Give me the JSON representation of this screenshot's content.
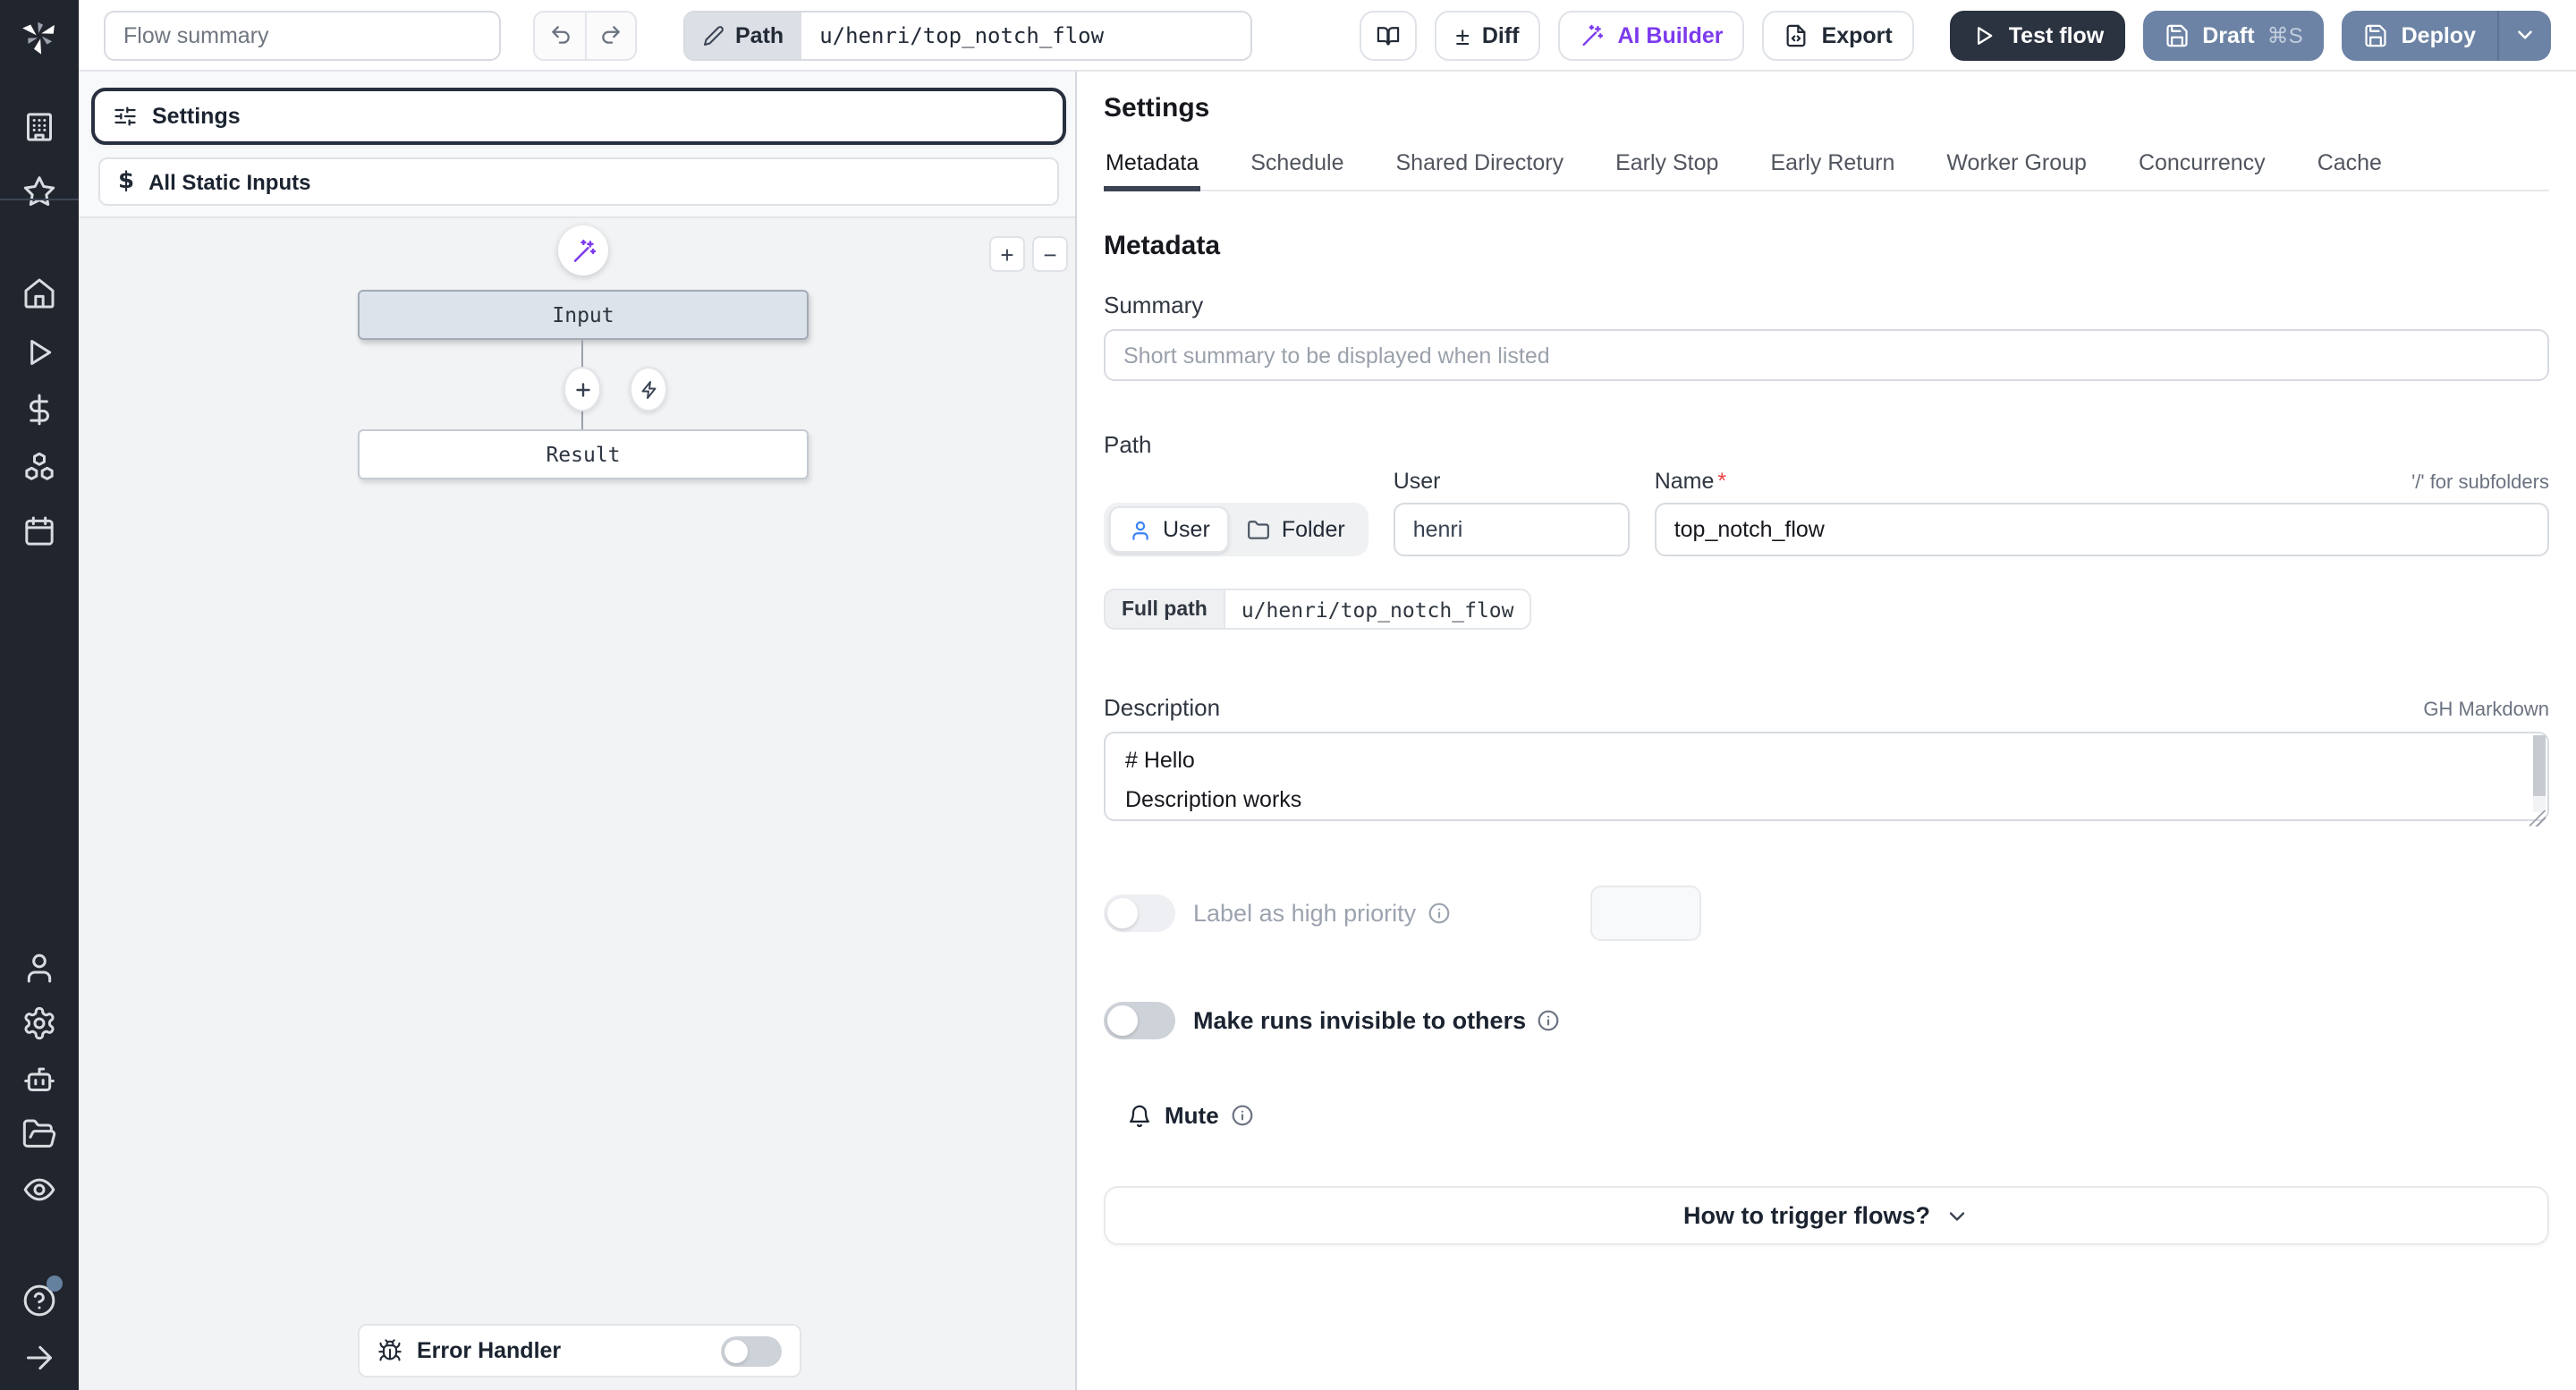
{
  "topbar": {
    "flow_summary_placeholder": "Flow summary",
    "path_badge_label": "Path",
    "path_value": "u/henri/top_notch_flow",
    "diff_glyph": "±",
    "diff_label": "Diff",
    "ai_builder_label": "AI Builder",
    "export_label": "Export",
    "test_flow_label": "Test flow",
    "draft_label": "Draft",
    "draft_shortcut": "⌘S",
    "deploy_label": "Deploy"
  },
  "sidebar": {
    "icons": [
      "workspace-building",
      "favorites-star",
      "home",
      "runs-play",
      "variables-dollar",
      "resources-boxes",
      "schedules-calendar",
      "users-person",
      "settings-gear",
      "workers-robot",
      "folders-folder",
      "audit-logs-eye",
      "help-question",
      "expand-arrow"
    ]
  },
  "flow_panel": {
    "settings_card_label": "Settings",
    "static_inputs_glyph": "$",
    "static_inputs_label": "All Static Inputs",
    "input_node_label": "Input",
    "result_node_label": "Result",
    "zoom_in_glyph": "+",
    "zoom_out_glyph": "−",
    "error_handler_label": "Error Handler"
  },
  "settings_panel": {
    "title": "Settings",
    "active_tab": "Metadata",
    "tabs": [
      "Metadata",
      "Schedule",
      "Shared Directory",
      "Early Stop",
      "Early Return",
      "Worker Group",
      "Concurrency",
      "Cache"
    ],
    "metadata": {
      "heading": "Metadata",
      "summary_label": "Summary",
      "summary_placeholder": "Short summary to be displayed when listed",
      "path_label": "Path",
      "user_toggle_label": "User",
      "folder_toggle_label": "Folder",
      "user_field_label": "User",
      "user_value": "henri",
      "name_label": "Name",
      "required_marker": "*",
      "name_value": "top_notch_flow",
      "subfolders_hint": "'/' for subfolders",
      "full_path_label": "Full path",
      "full_path_value": "u/henri/top_notch_flow",
      "description_label": "Description",
      "markdown_hint": "GH Markdown",
      "description_value": "# Hello\nDescription works",
      "high_priority_label": "Label as high priority",
      "invisible_runs_label": "Make runs invisible to others",
      "mute_label": "Mute",
      "trigger_section_label": "How to trigger flows?"
    }
  },
  "colors": {
    "deploy_button": "#6c83a5",
    "test_flow_button": "#2b3240",
    "ai_accent": "#7c3aed",
    "user_icon_blue": "#3b82f6",
    "sidebar_bg": "#21252d",
    "help_badge_dot": "#64809f",
    "selected_node_bg": "#dce3ea"
  }
}
